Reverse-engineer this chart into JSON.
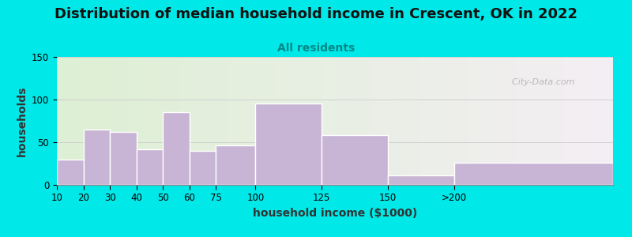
{
  "title": "Distribution of median household income in Crescent, OK in 2022",
  "subtitle": "All residents",
  "xlabel": "household income ($1000)",
  "ylabel": "households",
  "bar_lefts": [
    0,
    10,
    20,
    30,
    40,
    50,
    60,
    75,
    100,
    125,
    150
  ],
  "bar_widths": [
    10,
    10,
    10,
    10,
    10,
    10,
    15,
    25,
    25,
    25,
    60
  ],
  "bar_labels": [
    "10",
    "20",
    "30",
    "40",
    "50",
    "60",
    "75",
    "100",
    "125",
    "150",
    ">200"
  ],
  "values": [
    30,
    65,
    62,
    42,
    85,
    40,
    46,
    95,
    58,
    11,
    26
  ],
  "bar_color": "#c8b4d4",
  "bar_edge_color": "#ffffff",
  "ylim": [
    0,
    150
  ],
  "yticks": [
    0,
    50,
    100,
    150
  ],
  "xlim": [
    0,
    210
  ],
  "background_outer": "#00e8e8",
  "bg_left_color": "#ddf0d4",
  "bg_right_color": "#f4eef4",
  "title_fontsize": 13,
  "subtitle_fontsize": 10,
  "subtitle_color": "#008888",
  "axis_label_fontsize": 10,
  "tick_fontsize": 8.5,
  "watermark": "  City-Data.com"
}
